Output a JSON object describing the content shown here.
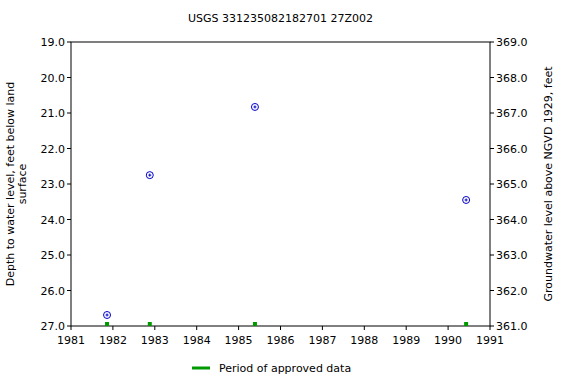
{
  "chart_data": {
    "type": "scatter",
    "title": "USGS 331235082182701 27Z002",
    "x_label": null,
    "y_label": "Depth to water level, feet below land surface",
    "y2_label": "Groundwater level above NGVD 1929, feet",
    "xlim": [
      1981,
      1991
    ],
    "xticks": [
      1981,
      1982,
      1983,
      1984,
      1985,
      1986,
      1987,
      1988,
      1989,
      1990,
      1991
    ],
    "ylim": [
      27,
      19
    ],
    "yticks": [
      {
        "value": 19,
        "label": "19.0"
      },
      {
        "value": 20,
        "label": "20.0"
      },
      {
        "value": 21,
        "label": "21.0"
      },
      {
        "value": 22,
        "label": "22.0"
      },
      {
        "value": 23,
        "label": "23.0"
      },
      {
        "value": 24,
        "label": "24.0"
      },
      {
        "value": 25,
        "label": "25.0"
      },
      {
        "value": 26,
        "label": "26.0"
      },
      {
        "value": 27,
        "label": "27.0"
      }
    ],
    "y2lim": [
      361,
      369
    ],
    "y2ticks": [
      {
        "value": 361,
        "label": "361.0"
      },
      {
        "value": 362,
        "label": "362.0"
      },
      {
        "value": 363,
        "label": "363.0"
      },
      {
        "value": 364,
        "label": "364.0"
      },
      {
        "value": 365,
        "label": "365.0"
      },
      {
        "value": 366,
        "label": "366.0"
      },
      {
        "value": 367,
        "label": "367.0"
      },
      {
        "value": 368,
        "label": "368.0"
      },
      {
        "value": 369,
        "label": "369.0"
      }
    ],
    "grid": false,
    "legend": "bottom",
    "series": [
      {
        "type": "scatter",
        "marker": "circle",
        "color": "#0000cc",
        "x": [
          1981.86,
          1982.88,
          1985.39,
          1990.43
        ],
        "values": [
          26.69,
          22.75,
          20.83,
          23.45
        ]
      },
      {
        "name": "Period of approved data",
        "type": "scatter",
        "marker": "square",
        "color": "#009900",
        "x": [
          1981.86,
          1982.88,
          1985.39,
          1990.43
        ],
        "values": [
          27,
          27,
          27,
          27
        ]
      }
    ]
  }
}
